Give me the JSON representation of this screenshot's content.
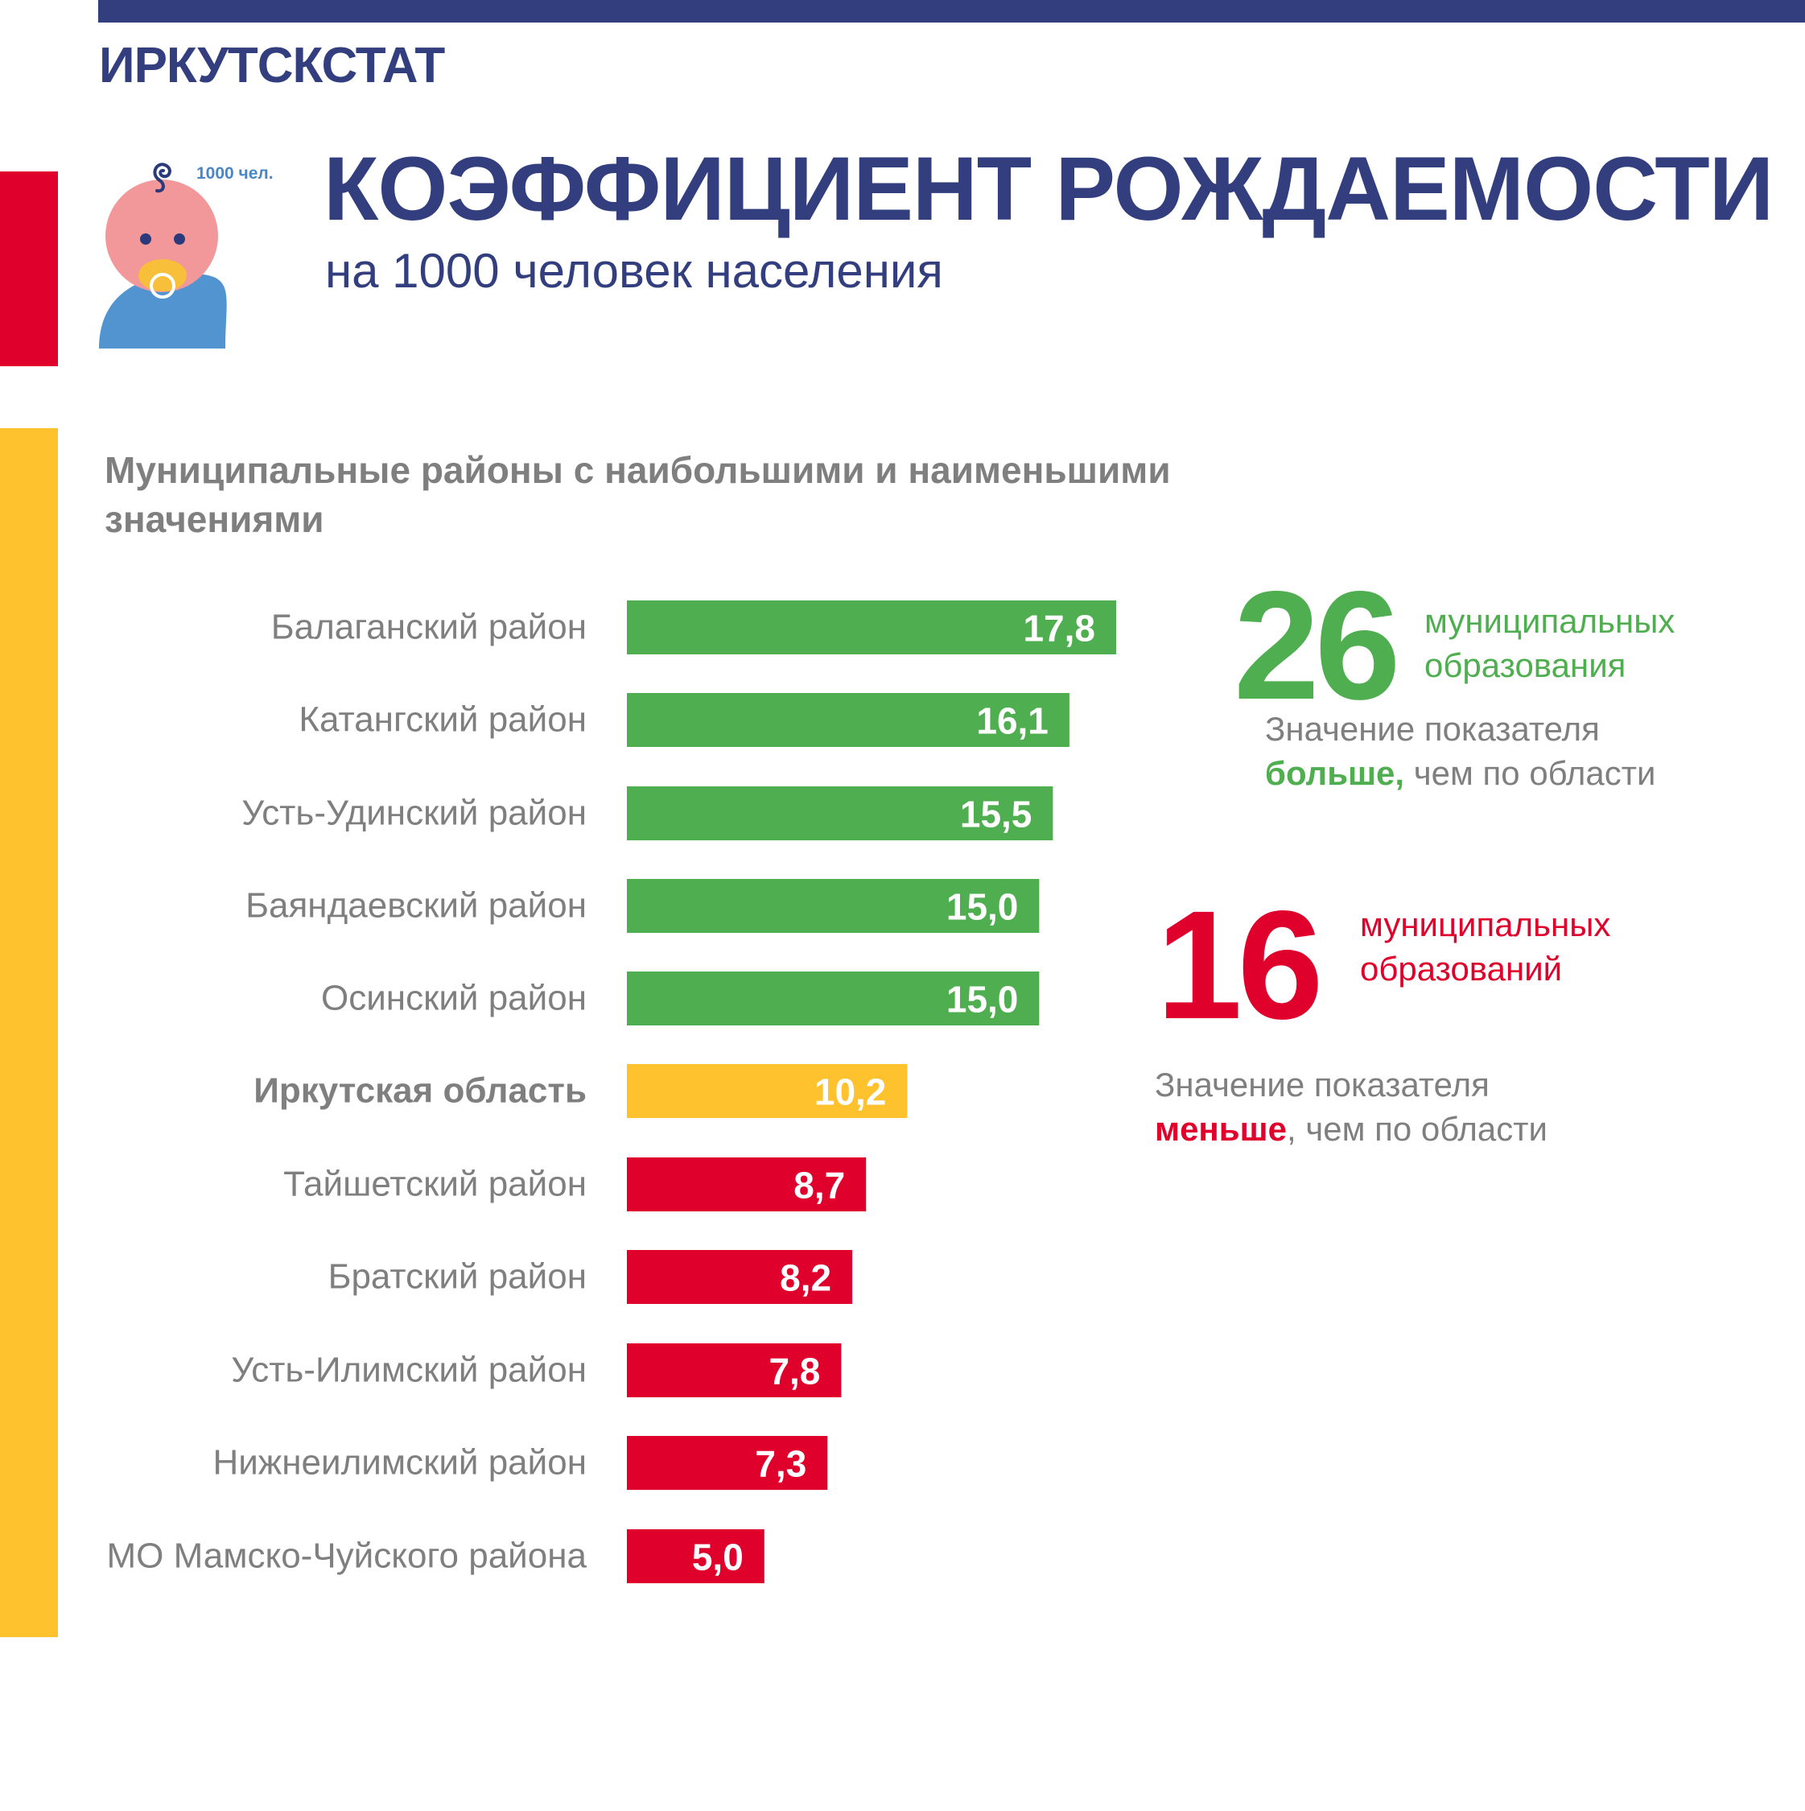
{
  "header": {
    "brand": "ИРКУТСКСТАТ"
  },
  "hero": {
    "title": "КОЭФФИЦИЕНТ РОЖДАЕМОСТИ",
    "subtitle": "на 1000 человек населения",
    "icon_label": "1000 чел."
  },
  "chart_heading": "Муниципальные районы с наибольшими и наименьшими значениями",
  "stats": {
    "above": {
      "count": "26",
      "label_line1": "муниципальных",
      "label_line2": "образования",
      "note_line1": "Значение показателя",
      "note_emph": "больше,",
      "note_rest": " чем по области"
    },
    "below": {
      "count": "16",
      "label_line1": "муниципальных",
      "label_line2": "образований",
      "note_line1": "Значение показателя",
      "note_emph": "меньше",
      "note_rest": ", чем по области"
    }
  },
  "colors": {
    "navy": "#323e7e",
    "green": "#4fae4f",
    "yellow": "#fec22f",
    "red": "#e0002c",
    "gray": "#7f7f7f"
  },
  "chart_data": {
    "type": "bar",
    "orientation": "horizontal",
    "title": "Муниципальные районы с наибольшими и наименьшими значениями",
    "categories": [
      "Балаганский район",
      "Катангский район",
      "Усть-Удинский район",
      "Баяндаевский район",
      "Осинский район",
      "Иркутская область",
      "Тайшетский район",
      "Братский район",
      "Усть-Илимский район",
      "Нижнеилимский район",
      "МО Мамско-Чуйского района"
    ],
    "values": [
      17.8,
      16.1,
      15.5,
      15.0,
      15.0,
      10.2,
      8.7,
      8.2,
      7.8,
      7.3,
      5.0
    ],
    "value_labels": [
      "17,8",
      "16,1",
      "15,5",
      "15,0",
      "15,0",
      "10,2",
      "8,7",
      "8,2",
      "7,8",
      "7,3",
      "5,0"
    ],
    "groups": [
      "above",
      "above",
      "above",
      "above",
      "above",
      "region",
      "below",
      "below",
      "below",
      "below",
      "below"
    ],
    "group_colors": {
      "above": "#4fae4f",
      "region": "#fec22f",
      "below": "#e0002c"
    },
    "highlight_category": "Иркутская область",
    "xlim": [
      0,
      17.8
    ],
    "grid": false,
    "legend": "none"
  }
}
